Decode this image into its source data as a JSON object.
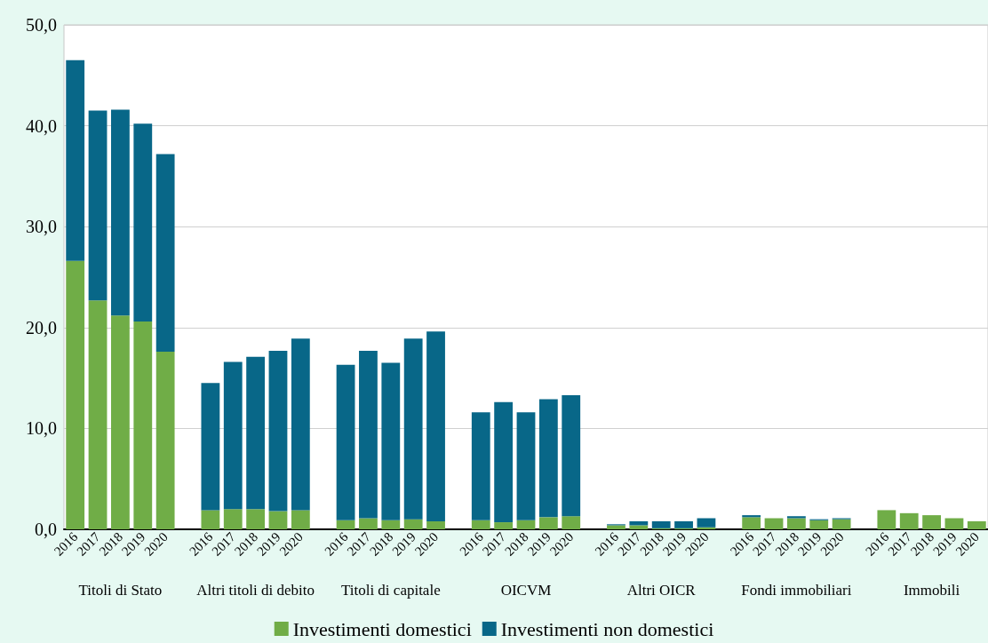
{
  "chart_data": {
    "type": "bar",
    "stacked": true,
    "categories": [
      "2016",
      "2017",
      "2018",
      "2019",
      "2020",
      null,
      "2016",
      "2017",
      "2018",
      "2019",
      "2020",
      null,
      "2016",
      "2017",
      "2018",
      "2019",
      "2020",
      null,
      "2016",
      "2017",
      "2018",
      "2019",
      "2020",
      null,
      "2016",
      "2017",
      "2018",
      "2019",
      "2020",
      null,
      "2016",
      "2017",
      "2018",
      "2019",
      "2020",
      null,
      "2016",
      "2017",
      "2018",
      "2019",
      "2020"
    ],
    "series": [
      {
        "name": "Investimenti domestici",
        "color": "#70ad47",
        "values": [
          26.6,
          22.7,
          21.2,
          20.6,
          17.6,
          null,
          1.9,
          2.0,
          2.0,
          1.8,
          1.9,
          null,
          0.9,
          1.1,
          0.9,
          1.0,
          0.8,
          null,
          0.9,
          0.7,
          0.9,
          1.2,
          1.3,
          null,
          0.4,
          0.4,
          0.1,
          0.1,
          0.2,
          null,
          1.2,
          1.1,
          1.1,
          0.9,
          1.0,
          null,
          1.9,
          1.6,
          1.4,
          1.1,
          0.8
        ]
      },
      {
        "name": "Investimenti non domestici",
        "color": "#086788",
        "values": [
          19.9,
          18.8,
          20.4,
          19.6,
          19.6,
          null,
          12.6,
          14.6,
          15.1,
          15.9,
          17.0,
          null,
          15.4,
          16.6,
          15.6,
          17.9,
          18.8,
          null,
          10.7,
          11.9,
          10.7,
          11.7,
          12.0,
          null,
          0.1,
          0.4,
          0.7,
          0.7,
          0.9,
          null,
          0.2,
          null,
          0.2,
          0.1,
          0.1,
          null,
          null,
          null,
          null,
          null,
          null
        ]
      }
    ],
    "ylim": [
      0,
      50
    ],
    "yticks": [
      {
        "value": 0,
        "label": "0,0"
      },
      {
        "value": 10,
        "label": "10,0"
      },
      {
        "value": 20,
        "label": "20,0"
      },
      {
        "value": 30,
        "label": "30,0"
      },
      {
        "value": 40,
        "label": "40,0"
      },
      {
        "value": 50,
        "label": "50,0"
      }
    ],
    "grid": "y",
    "legend": "bottom",
    "annotations": [
      "Titoli di Stato",
      "Altri titoli di debito",
      "Titoli di capitale",
      "OICVM",
      "Altri OICR",
      "Fondi immobiliari",
      "Immobili"
    ]
  }
}
